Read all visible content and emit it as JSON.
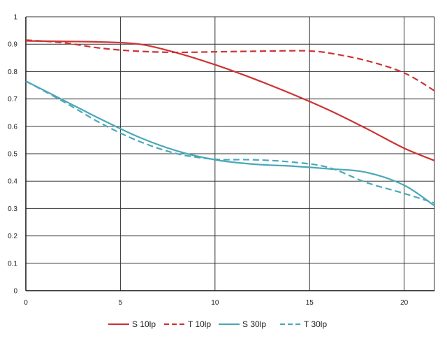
{
  "chart_data": {
    "type": "line",
    "title": "",
    "xlabel": "",
    "ylabel": "",
    "xlim": [
      0,
      21.6
    ],
    "ylim": [
      0,
      1
    ],
    "x_ticks": [
      "0",
      "5",
      "10",
      "15",
      "20"
    ],
    "y_ticks": [
      "0",
      "0.1",
      "0.2",
      "0.3",
      "0.4",
      "0.5",
      "0.6",
      "0.7",
      "0.8",
      "0.9",
      "1"
    ],
    "grid": true,
    "legend_position": "bottom-center",
    "series": [
      {
        "name": "S 10lp",
        "color": "#cc3333",
        "dash": "solid",
        "x": [
          0,
          2,
          4,
          6,
          8,
          10,
          12,
          14,
          16,
          18,
          20,
          21.6
        ],
        "y": [
          0.912,
          0.91,
          0.908,
          0.9,
          0.868,
          0.825,
          0.775,
          0.72,
          0.66,
          0.592,
          0.52,
          0.475
        ]
      },
      {
        "name": "T 10lp",
        "color": "#cc3333",
        "dash": "dashed",
        "x": [
          0,
          2,
          4,
          6,
          8,
          10,
          12,
          14,
          15,
          16,
          18,
          20,
          21.6
        ],
        "y": [
          0.915,
          0.905,
          0.885,
          0.874,
          0.87,
          0.872,
          0.874,
          0.876,
          0.875,
          0.868,
          0.84,
          0.795,
          0.73
        ]
      },
      {
        "name": "S 30lp",
        "color": "#4aa8b8",
        "dash": "solid",
        "x": [
          0,
          2,
          4,
          6,
          8,
          10,
          12,
          14,
          16,
          18,
          20,
          21.6
        ],
        "y": [
          0.765,
          0.695,
          0.625,
          0.56,
          0.51,
          0.478,
          0.462,
          0.455,
          0.445,
          0.432,
          0.385,
          0.31
        ]
      },
      {
        "name": "T 30lp",
        "color": "#4aa8b8",
        "dash": "dashed",
        "x": [
          0,
          2,
          4,
          6,
          8,
          10,
          12,
          14,
          16,
          18,
          20,
          21.6
        ],
        "y": [
          0.765,
          0.69,
          0.61,
          0.545,
          0.5,
          0.48,
          0.478,
          0.47,
          0.45,
          0.395,
          0.355,
          0.32
        ]
      }
    ]
  }
}
